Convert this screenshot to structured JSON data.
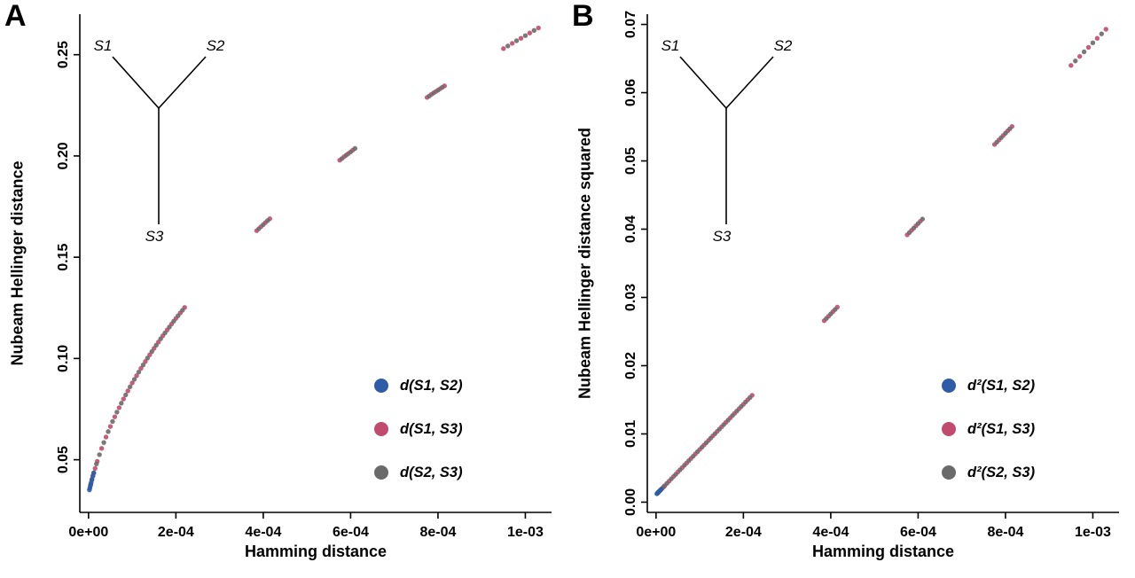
{
  "chart_data": {
    "type": "scatter",
    "point_columns": [
      "hamming_distance",
      "hellinger_distance",
      "hellinger_distance_squared"
    ],
    "draw_order": [
      1,
      2,
      0
    ],
    "panels": [
      {
        "label": "A",
        "x_label": "Hamming distance",
        "y_label": "Nubeam Hellinger distance",
        "x_tick_values": [
          0,
          0.0002,
          0.0004,
          0.0006,
          0.0008,
          0.001
        ],
        "x_tick_labels": [
          "0e+00",
          "2e-04",
          "4e-04",
          "6e-04",
          "8e-04",
          "1e-03"
        ],
        "y_tick_values": [
          0.05,
          0.1,
          0.15,
          0.2,
          0.25
        ],
        "y_tick_labels": [
          "0.05",
          "0.10",
          "0.15",
          "0.20",
          "0.25"
        ],
        "x_domain": [
          -2e-05,
          0.00106
        ],
        "y_domain": [
          0.024,
          0.27
        ],
        "y_index": 1,
        "tree": {
          "s1": "S1",
          "s2": "S2",
          "s3": "S3"
        },
        "legend": [
          {
            "label": "d(S1, S2)",
            "color": "#2e5ca6"
          },
          {
            "label": "d(S1, S3)",
            "color": "#c14b6e"
          },
          {
            "label": "d(S2, S3)",
            "color": "#6a6a6a"
          }
        ]
      },
      {
        "label": "B",
        "x_label": "Hamming distance",
        "y_label": "Nubeam Hellinger distance squared",
        "x_tick_values": [
          0,
          0.0002,
          0.0004,
          0.0006,
          0.0008,
          0.001
        ],
        "x_tick_labels": [
          "0e+00",
          "2e-04",
          "4e-04",
          "6e-04",
          "8e-04",
          "1e-03"
        ],
        "y_tick_values": [
          0,
          0.01,
          0.02,
          0.03,
          0.04,
          0.05,
          0.06,
          0.07
        ],
        "y_tick_labels": [
          "0.00",
          "0.01",
          "0.02",
          "0.03",
          "0.04",
          "0.05",
          "0.06",
          "0.07"
        ],
        "x_domain": [
          -2e-05,
          0.00106
        ],
        "y_domain": [
          -0.0015,
          0.0715
        ],
        "y_index": 2,
        "tree": {
          "s1": "S1",
          "s2": "S2",
          "s3": "S3"
        },
        "legend": [
          {
            "label": "d²(S1, S2)",
            "color": "#2e5ca6"
          },
          {
            "label": "d²(S1, S3)",
            "color": "#c14b6e"
          },
          {
            "label": "d²(S2, S3)",
            "color": "#6a6a6a"
          }
        ]
      }
    ],
    "series": [
      {
        "name": "d(S1, S2)",
        "color": "#2e5ca6",
        "points": [
          [
            2e-06,
            0.0351,
            0.00123
          ],
          [
            3e-06,
            0.036,
            0.0013
          ],
          [
            4e-06,
            0.0369,
            0.00137
          ],
          [
            5e-06,
            0.0378,
            0.00143
          ],
          [
            6e-06,
            0.0387,
            0.0015
          ],
          [
            8e-06,
            0.0404,
            0.00163
          ],
          [
            1e-05,
            0.042,
            0.00176
          ],
          [
            1.2e-05,
            0.0435,
            0.00189
          ]
        ]
      },
      {
        "name": "d(S1, S3)",
        "color": "#c14b6e",
        "points": [
          [
            5e-06,
            0.0378,
            0.00143
          ],
          [
            1e-05,
            0.042,
            0.00176
          ],
          [
            1.5e-05,
            0.0457,
            0.00209
          ],
          [
            2e-05,
            0.0492,
            0.00242
          ],
          [
            3e-05,
            0.0556,
            0.00309
          ],
          [
            4e-05,
            0.0612,
            0.00375
          ],
          [
            5e-05,
            0.0664,
            0.00441
          ],
          [
            6e-05,
            0.0712,
            0.00507
          ],
          [
            7e-05,
            0.0757,
            0.00573
          ],
          [
            8e-05,
            0.08,
            0.0064
          ],
          [
            9e-05,
            0.084,
            0.00706
          ],
          [
            0.0001,
            0.0879,
            0.00772
          ],
          [
            0.00011,
            0.0915,
            0.00838
          ],
          [
            0.00012,
            0.0951,
            0.00904
          ],
          [
            0.00013,
            0.0985,
            0.00971
          ],
          [
            0.00014,
            0.1018,
            0.01037
          ],
          [
            0.00015,
            0.105,
            0.01103
          ],
          [
            0.00016,
            0.1081,
            0.01169
          ],
          [
            0.00017,
            0.1112,
            0.01235
          ],
          [
            0.00018,
            0.1141,
            0.01302
          ],
          [
            0.00019,
            0.117,
            0.01368
          ],
          [
            0.0002,
            0.1198,
            0.01434
          ],
          [
            0.00021,
            0.1225,
            0.015
          ],
          [
            0.00022,
            0.1252,
            0.01566
          ],
          [
            0.000385,
            0.1631,
            0.02659
          ],
          [
            0.000395,
            0.1651,
            0.02725
          ],
          [
            0.000405,
            0.1671,
            0.02791
          ],
          [
            0.000415,
            0.169,
            0.02857
          ],
          [
            0.000575,
            0.1979,
            0.03917
          ],
          [
            0.000585,
            0.1996,
            0.03983
          ],
          [
            0.000595,
            0.2012,
            0.04049
          ],
          [
            0.000605,
            0.2029,
            0.04115
          ],
          [
            0.000775,
            0.2289,
            0.05241
          ],
          [
            0.000785,
            0.2304,
            0.05307
          ],
          [
            0.000795,
            0.2318,
            0.05373
          ],
          [
            0.000805,
            0.2332,
            0.05439
          ],
          [
            0.000815,
            0.2346,
            0.05505
          ],
          [
            0.00095,
            0.253,
            0.06399
          ],
          [
            0.00097,
            0.2556,
            0.06531
          ],
          [
            0.00099,
            0.2581,
            0.06664
          ],
          [
            0.00101,
            0.2607,
            0.06796
          ],
          [
            0.00103,
            0.2632,
            0.06929
          ]
        ]
      },
      {
        "name": "d(S2, S3)",
        "color": "#6a6a6a",
        "points": [
          [
            7.5e-06,
            0.04,
            0.0016
          ],
          [
            1.2e-05,
            0.0435,
            0.00189
          ],
          [
            1.8e-05,
            0.0479,
            0.00229
          ],
          [
            2.5e-05,
            0.0525,
            0.00276
          ],
          [
            3.5e-05,
            0.0585,
            0.00342
          ],
          [
            4.5e-05,
            0.0639,
            0.00408
          ],
          [
            5.5e-05,
            0.0689,
            0.00474
          ],
          [
            6.5e-05,
            0.0735,
            0.0054
          ],
          [
            7.5e-05,
            0.0779,
            0.00607
          ],
          [
            8.5e-05,
            0.082,
            0.00673
          ],
          [
            9.5e-05,
            0.086,
            0.00739
          ],
          [
            0.000105,
            0.0897,
            0.00805
          ],
          [
            0.000115,
            0.0933,
            0.00871
          ],
          [
            0.000125,
            0.0968,
            0.00938
          ],
          [
            0.000135,
            0.1002,
            0.01004
          ],
          [
            0.000145,
            0.1034,
            0.0107
          ],
          [
            0.000155,
            0.1066,
            0.01136
          ],
          [
            0.000165,
            0.1097,
            0.01202
          ],
          [
            0.000175,
            0.1126,
            0.01269
          ],
          [
            0.000185,
            0.1155,
            0.01335
          ],
          [
            0.000195,
            0.1184,
            0.01401
          ],
          [
            0.000205,
            0.1211,
            0.01467
          ],
          [
            0.000215,
            0.1238,
            0.01533
          ],
          [
            0.00039,
            0.1641,
            0.02692
          ],
          [
            0.0004,
            0.1661,
            0.02758
          ],
          [
            0.00041,
            0.1681,
            0.02824
          ],
          [
            0.00058,
            0.1987,
            0.0395
          ],
          [
            0.00059,
            0.2004,
            0.04016
          ],
          [
            0.0006,
            0.202,
            0.04082
          ],
          [
            0.00061,
            0.2037,
            0.04148
          ],
          [
            0.00078,
            0.2296,
            0.05274
          ],
          [
            0.00079,
            0.2311,
            0.0534
          ],
          [
            0.0008,
            0.2325,
            0.05406
          ],
          [
            0.00081,
            0.2339,
            0.05472
          ],
          [
            0.00096,
            0.2543,
            0.06465
          ],
          [
            0.00098,
            0.2569,
            0.06598
          ],
          [
            0.001,
            0.2594,
            0.0673
          ],
          [
            0.00102,
            0.262,
            0.06862
          ]
        ]
      }
    ]
  }
}
